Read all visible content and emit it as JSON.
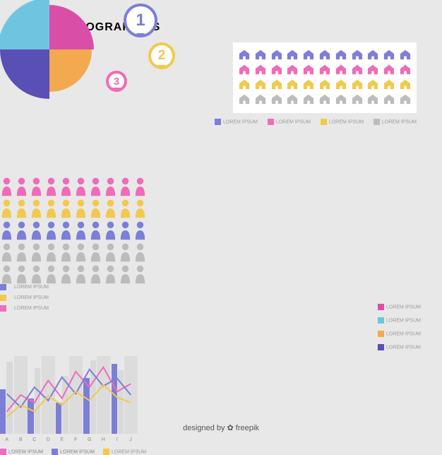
{
  "title": "FLAT INPHOGRAPHICS",
  "footer": "designed by ✿ freepik",
  "colors": {
    "purple": "#7b7fd6",
    "pink": "#f06bb9",
    "yellow": "#f2c94c",
    "grey": "#bcbcbc",
    "lightgrey": "#d9d9d9",
    "white": "#ffffff",
    "cyan": "#6fc5e0",
    "magenta": "#d94fa8",
    "darkpurple": "#5a4fb5",
    "orange": "#f2a950",
    "bg": "#e8e8e8",
    "panel": "#ffffff",
    "text": "#999999"
  },
  "barchart": {
    "type": "bar",
    "series": [
      "purple",
      "grey"
    ],
    "colors": [
      "#7b7fd6",
      "#d9d9d9"
    ],
    "categories": [
      "A",
      "B",
      "C",
      "D",
      "E",
      "F",
      "G",
      "H",
      "I",
      "J"
    ],
    "values": [
      [
        400,
        650
      ],
      [
        620,
        380
      ],
      [
        320,
        590
      ],
      [
        700,
        450
      ],
      [
        280,
        520
      ],
      [
        680,
        420
      ],
      [
        500,
        660
      ],
      [
        450,
        350
      ],
      [
        630,
        570
      ],
      [
        380,
        690
      ]
    ],
    "ylim": [
      0,
      700
    ],
    "ytick_step": 100,
    "legend": [
      {
        "c": "#7b7fd6",
        "t": "LOREM IPSUM"
      },
      {
        "c": "#d9d9d9",
        "t": "LOREM IPSUM"
      }
    ]
  },
  "houses": {
    "type": "pictogram",
    "rows": 4,
    "cols": 11,
    "row_colors": [
      "#7b7fd6",
      "#f06bb9",
      "#f2c94c",
      "#bcbcbc"
    ],
    "legend": [
      {
        "c": "#7b7fd6",
        "t": "LOREM IPSUM"
      },
      {
        "c": "#f06bb9",
        "t": "LOREM IPSUM"
      },
      {
        "c": "#f2c94c",
        "t": "LOREM IPSUM"
      },
      {
        "c": "#bcbcbc",
        "t": "LOREM IPSUM"
      }
    ]
  },
  "linechart": {
    "type": "line",
    "categories": [
      "A",
      "B",
      "C",
      "D",
      "E",
      "F",
      "G",
      "H",
      "I",
      "J"
    ],
    "ylim": [
      0,
      700
    ],
    "ytick_step": 100,
    "series": [
      {
        "c": "#f06bb9",
        "v": [
          200,
          350,
          280,
          480,
          320,
          560,
          420,
          600,
          380,
          450
        ]
      },
      {
        "c": "#7b7fd6",
        "v": [
          360,
          240,
          420,
          300,
          510,
          360,
          580,
          430,
          500,
          350
        ]
      },
      {
        "c": "#f2c94c",
        "v": [
          150,
          260,
          200,
          340,
          260,
          380,
          300,
          440,
          330,
          280
        ]
      }
    ],
    "bg_bars": [
      "#dcdcdc"
    ],
    "legend": [
      {
        "c": "#f06bb9",
        "t": "LOREM IPSUM"
      },
      {
        "c": "#7b7fd6",
        "t": "LOREM IPSUM"
      },
      {
        "c": "#f2c94c",
        "t": "LOREM IPSUM"
      }
    ]
  },
  "people": {
    "type": "pictogram",
    "rows": 5,
    "cols": 10,
    "row_colors": [
      "#f06bb9",
      "#f2c94c",
      "#7b7fd6",
      "#bcbcbc",
      "#bcbcbc"
    ]
  },
  "bubbles": {
    "legend": [
      {
        "c": "#7b7fd6",
        "t": "LOREM IPSUM"
      },
      {
        "c": "#f2c94c",
        "t": "LOREM IPSUM"
      },
      {
        "c": "#f06bb9",
        "t": "LOREM IPSUM"
      }
    ],
    "items": [
      {
        "n": "1",
        "c": "#7b7fd6",
        "size": 48,
        "x": 175,
        "y": 5
      },
      {
        "n": "2",
        "c": "#f2c94c",
        "size": 38,
        "x": 210,
        "y": 60
      },
      {
        "n": "3",
        "c": "#f06bb9",
        "size": 30,
        "x": 150,
        "y": 100
      }
    ]
  },
  "pie": {
    "type": "pie",
    "quads": [
      {
        "c": "#d94fa8",
        "scale": 0.9
      },
      {
        "c": "#6fc5e0",
        "scale": 1.05
      },
      {
        "c": "#f2a950",
        "scale": 0.85
      },
      {
        "c": "#5a4fb5",
        "scale": 1.0
      }
    ],
    "legend": [
      {
        "c": "#d94fa8",
        "t": "LOREM IPSUM"
      },
      {
        "c": "#6fc5e0",
        "t": "LOREM IPSUM"
      },
      {
        "c": "#f2a950",
        "t": "LOREM IPSUM"
      },
      {
        "c": "#5a4fb5",
        "t": "LOREM IPSUM"
      }
    ]
  }
}
